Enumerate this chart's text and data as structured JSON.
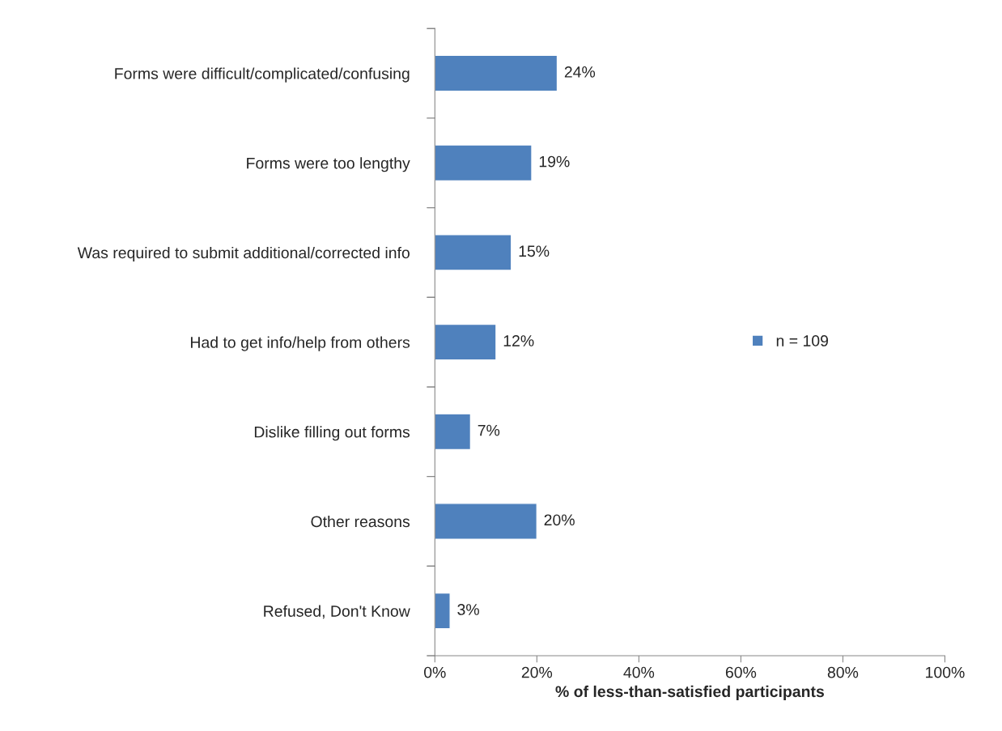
{
  "chart_data": {
    "type": "bar",
    "orientation": "horizontal",
    "xlabel": "% of less-than-satisfied participants",
    "categories": [
      "Forms were difficult/complicated/confusing",
      "Forms were too lengthy",
      "Was required to submit additional/corrected info",
      "Had to get info/help from others",
      "Dislike filling out forms",
      "Other reasons",
      "Refused, Don't Know"
    ],
    "series": [
      {
        "name": "n = 109",
        "color": "#4f81bd",
        "values": [
          24,
          19,
          15,
          12,
          7,
          20,
          3
        ],
        "value_labels": [
          "24%",
          "19%",
          "15%",
          "12%",
          "7%",
          "20%",
          "3%"
        ]
      }
    ],
    "xlim": [
      0,
      100
    ],
    "xticks": [
      {
        "value": 0,
        "label": "0%"
      },
      {
        "value": 20,
        "label": "20%"
      },
      {
        "value": 40,
        "label": "40%"
      },
      {
        "value": 60,
        "label": "60%"
      },
      {
        "value": 80,
        "label": "80%"
      },
      {
        "value": 100,
        "label": "100%"
      }
    ],
    "legend": "right",
    "grid": false
  }
}
